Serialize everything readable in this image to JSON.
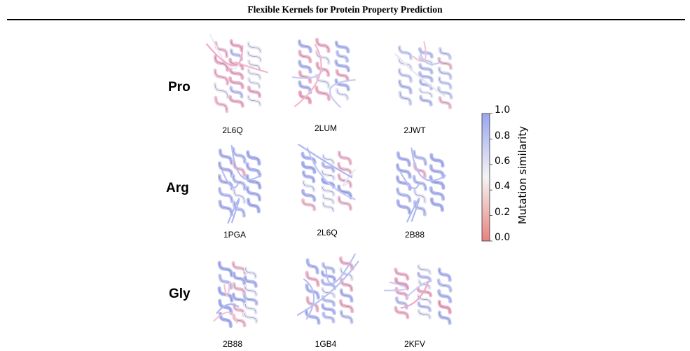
{
  "header": {
    "title": "Flexible Kernels for Protein Property Prediction"
  },
  "figure": {
    "rows": [
      {
        "label": "Pro",
        "structures": [
          {
            "pdb": "2L6Q",
            "tint": "pink"
          },
          {
            "pdb": "2LUM",
            "tint": "mixed"
          },
          {
            "pdb": "2JWT",
            "tint": "light"
          }
        ]
      },
      {
        "label": "Arg",
        "structures": [
          {
            "pdb": "1PGA",
            "tint": "blue"
          },
          {
            "pdb": "2L6Q",
            "tint": "blue"
          },
          {
            "pdb": "2B88",
            "tint": "blue"
          }
        ]
      },
      {
        "label": "Gly",
        "structures": [
          {
            "pdb": "2B88",
            "tint": "blue"
          },
          {
            "pdb": "1GB4",
            "tint": "mixed"
          },
          {
            "pdb": "2KFV",
            "tint": "mixed"
          }
        ]
      }
    ],
    "colorbar": {
      "label": "Mutation similarity",
      "ticks": [
        "0.0",
        "0.2",
        "0.4",
        "0.6",
        "0.8",
        "1.0"
      ],
      "low_color": "#e8827f",
      "mid_color": "#f4f4f4",
      "high_color": "#9aa6ef"
    }
  }
}
